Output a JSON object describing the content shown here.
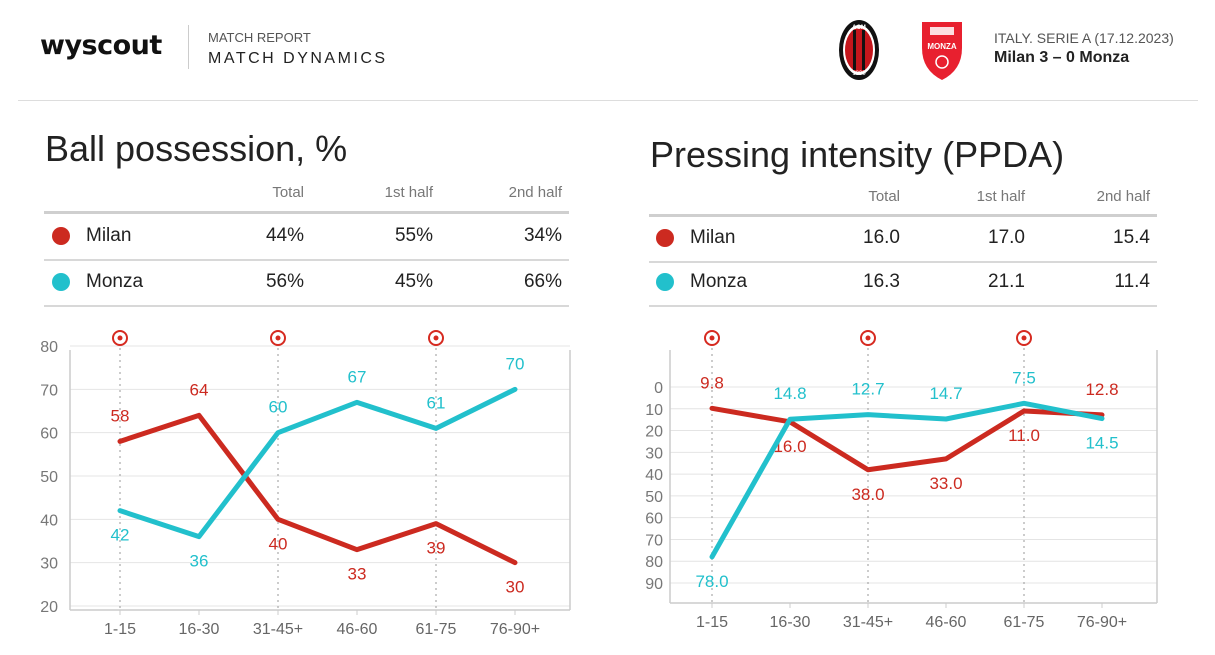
{
  "header": {
    "brand": "wyscout",
    "report_label": "MATCH REPORT",
    "report_title": "MATCH DYNAMICS",
    "competition": "ITALY. SERIE A (17.12.2023)",
    "score": "Milan 3 – 0 Monza",
    "home_crest_text": "ACM",
    "home_crest_year": "1899",
    "away_crest_text": "MONZA"
  },
  "colors": {
    "milan": "#cc2a20",
    "monza": "#22c0cc"
  },
  "possession_table": {
    "title": "Ball possession, %",
    "columns": [
      "Total",
      "1st half",
      "2nd half"
    ],
    "rows": [
      {
        "team": "Milan",
        "values": [
          "44%",
          "55%",
          "34%"
        ]
      },
      {
        "team": "Monza",
        "values": [
          "56%",
          "45%",
          "66%"
        ]
      }
    ]
  },
  "ppda_table": {
    "title": "Pressing intensity (PPDA)",
    "columns": [
      "Total",
      "1st half",
      "2nd half"
    ],
    "rows": [
      {
        "team": "Milan",
        "values": [
          "16.0",
          "17.0",
          "15.4"
        ]
      },
      {
        "team": "Monza",
        "values": [
          "16.3",
          "21.1",
          "11.4"
        ]
      }
    ]
  },
  "chart_data": [
    {
      "type": "line",
      "categories": [
        "1-15",
        "16-30",
        "31-45+",
        "46-60",
        "61-75",
        "76-90+"
      ],
      "yticks": [
        20,
        30,
        40,
        50,
        60,
        70,
        80
      ],
      "ylim": [
        20,
        80
      ],
      "grid": true,
      "goal_markers": [
        "1-15",
        "31-45+",
        "61-75"
      ],
      "series": [
        {
          "name": "Milan",
          "values": [
            58,
            64,
            40,
            33,
            39,
            30
          ]
        },
        {
          "name": "Monza",
          "values": [
            42,
            36,
            60,
            67,
            61,
            70
          ]
        }
      ]
    },
    {
      "type": "line",
      "categories": [
        "1-15",
        "16-30",
        "31-45+",
        "46-60",
        "61-75",
        "76-90+"
      ],
      "yticks": [
        0,
        10,
        20,
        30,
        40,
        50,
        60,
        70,
        80,
        90
      ],
      "ylim": [
        0,
        90
      ],
      "y_inverted": true,
      "grid": true,
      "goal_markers": [
        "1-15",
        "31-45+",
        "61-75"
      ],
      "series": [
        {
          "name": "Milan",
          "values": [
            9.8,
            16.0,
            38.0,
            33.0,
            11.0,
            12.8
          ]
        },
        {
          "name": "Monza",
          "values": [
            78.0,
            14.8,
            12.7,
            14.7,
            7.5,
            14.5
          ]
        }
      ]
    }
  ]
}
